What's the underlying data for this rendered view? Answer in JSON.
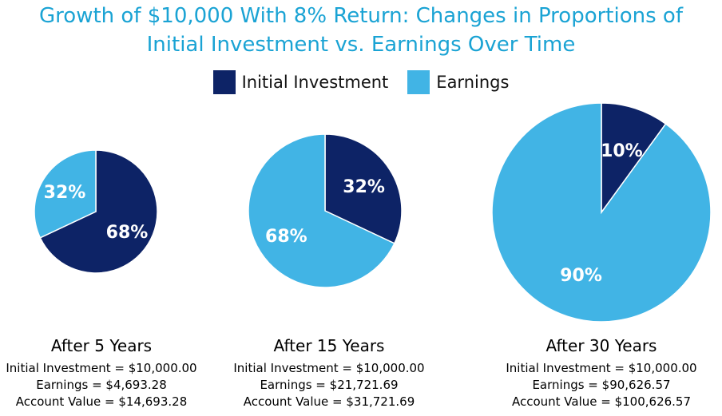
{
  "title_line1": "Growth of $10,000 With 8% Return: Changes in Proportions of",
  "title_line2": "Initial Investment vs. Earnings Over Time",
  "colors": {
    "initial": "#0d2366",
    "earnings": "#41b4e5",
    "title": "#1aa3d4"
  },
  "legend": [
    {
      "label": "Initial Investment",
      "color": "#0d2366"
    },
    {
      "label": "Earnings",
      "color": "#41b4e5"
    }
  ],
  "chart_data": [
    {
      "type": "pie",
      "title": "After 5 Years",
      "slices": [
        {
          "name": "Initial Investment",
          "value": 68,
          "label": "68%"
        },
        {
          "name": "Earnings",
          "value": 32,
          "label": "32%"
        }
      ],
      "details": [
        "Initial Investment = $10,000.00",
        "Earnings = $4,693.28",
        "Account Value = $14,693.28"
      ]
    },
    {
      "type": "pie",
      "title": "After 15 Years",
      "slices": [
        {
          "name": "Initial Investment",
          "value": 32,
          "label": "32%"
        },
        {
          "name": "Earnings",
          "value": 68,
          "label": "68%"
        }
      ],
      "details": [
        "Initial Investment = $10,000.00",
        "Earnings = $21,721.69",
        "Account Value = $31,721.69"
      ]
    },
    {
      "type": "pie",
      "title": "After 30 Years",
      "slices": [
        {
          "name": "Initial Investment",
          "value": 10,
          "label": "10%"
        },
        {
          "name": "Earnings",
          "value": 90,
          "label": "90%"
        }
      ],
      "details": [
        "Initial Investment = $10,000.00",
        "Earnings = $90,626.57",
        "Account Value = $100,626.57"
      ]
    }
  ]
}
